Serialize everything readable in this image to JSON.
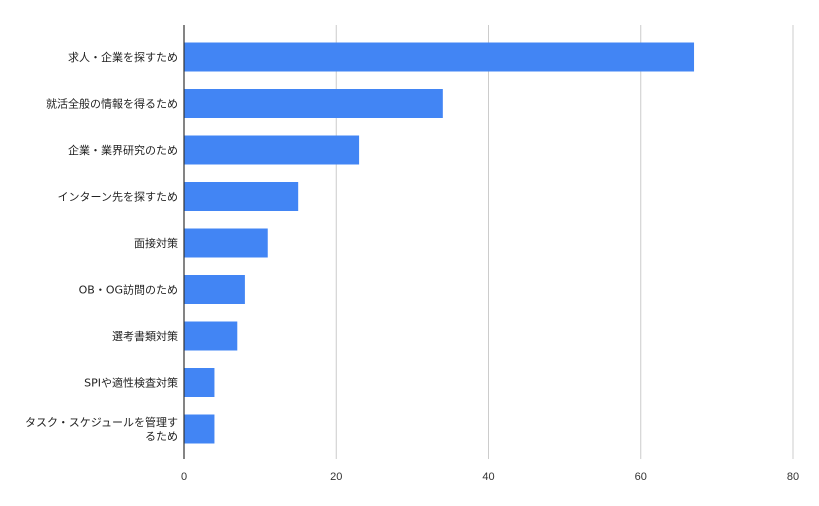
{
  "chart_data": {
    "type": "bar",
    "orientation": "horizontal",
    "title": "",
    "xlabel": "",
    "ylabel": "",
    "categories": [
      [
        "求人・企業を探すため"
      ],
      [
        "就活全般の情報を得るため"
      ],
      [
        "企業・業界研究のため"
      ],
      [
        "インターン先を探すため"
      ],
      [
        "面接対策"
      ],
      [
        "OB・OG訪問のため"
      ],
      [
        "選考書類対策"
      ],
      [
        "SPIや適性検査対策"
      ],
      [
        "タスク・スケジュールを管理す",
        "るため"
      ]
    ],
    "values": [
      67,
      34,
      23,
      15,
      11,
      8,
      7,
      4,
      4
    ],
    "xlim": [
      0,
      80
    ],
    "xticks": [
      0,
      20,
      40,
      60,
      80
    ],
    "grid": "vertical",
    "legend": "none",
    "colors": {
      "bar": "#4285f4",
      "grid": "#cccccc",
      "axis": "#333333"
    }
  }
}
